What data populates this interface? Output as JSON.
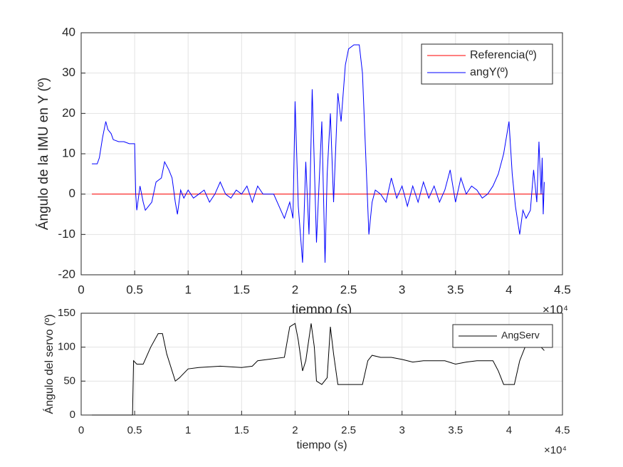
{
  "chart_data": [
    {
      "type": "line",
      "xlabel": "tiempo (s)",
      "ylabel": "Ángulo de la IMU en Y (º)",
      "x_exponent": "×10⁴",
      "xlim": [
        0,
        4.5
      ],
      "ylim": [
        -20,
        40
      ],
      "xticks": [
        0,
        0.5,
        1,
        1.5,
        2,
        2.5,
        3,
        3.5,
        4,
        4.5
      ],
      "yticks": [
        -20,
        -10,
        0,
        10,
        20,
        30,
        40
      ],
      "grid": true,
      "legend": "northeast",
      "series": [
        {
          "name": "Referencia(º)",
          "color": "#ff0000",
          "x": [
            0.1,
            4.33
          ],
          "values": [
            0,
            0
          ]
        },
        {
          "name": "angY(º)",
          "color": "#0000ff",
          "x": [
            0.1,
            0.15,
            0.17,
            0.2,
            0.23,
            0.25,
            0.28,
            0.3,
            0.35,
            0.4,
            0.45,
            0.5,
            0.51,
            0.52,
            0.55,
            0.58,
            0.6,
            0.63,
            0.66,
            0.7,
            0.75,
            0.78,
            0.82,
            0.85,
            0.88,
            0.9,
            0.93,
            0.96,
            1.0,
            1.05,
            1.1,
            1.15,
            1.2,
            1.25,
            1.3,
            1.35,
            1.4,
            1.45,
            1.5,
            1.55,
            1.6,
            1.65,
            1.7,
            1.8,
            1.85,
            1.9,
            1.95,
            1.98,
            2.0,
            2.03,
            2.07,
            2.1,
            2.13,
            2.16,
            2.2,
            2.25,
            2.28,
            2.3,
            2.33,
            2.36,
            2.4,
            2.43,
            2.47,
            2.5,
            2.55,
            2.6,
            2.63,
            2.66,
            2.69,
            2.72,
            2.75,
            2.8,
            2.85,
            2.9,
            2.95,
            3.0,
            3.05,
            3.1,
            3.15,
            3.2,
            3.25,
            3.3,
            3.35,
            3.4,
            3.45,
            3.5,
            3.55,
            3.6,
            3.65,
            3.7,
            3.75,
            3.8,
            3.85,
            3.9,
            3.95,
            4.0,
            4.03,
            4.06,
            4.1,
            4.13,
            4.16,
            4.2,
            4.23,
            4.26,
            4.28,
            4.3,
            4.31,
            4.32,
            4.33
          ],
          "values": [
            7.5,
            7.5,
            9,
            14,
            18,
            16,
            15,
            13.5,
            13,
            13,
            12.5,
            12.5,
            0,
            -4,
            2,
            -2,
            -4,
            -3,
            -2,
            3,
            4,
            8,
            6,
            4,
            -2,
            -5,
            1,
            -1,
            1,
            -1,
            0,
            1,
            -2,
            0,
            3,
            0,
            -1,
            1,
            0,
            2,
            -2,
            2,
            0,
            0,
            -3,
            -6,
            -2,
            -6,
            23,
            -3,
            -17,
            8,
            -10,
            26,
            -12,
            18,
            -17,
            5,
            20,
            -2,
            25,
            18,
            32,
            36,
            37,
            37,
            30,
            10,
            -10,
            -2,
            1,
            0,
            -2,
            4,
            -1,
            2,
            -3,
            2,
            -2,
            3,
            -1,
            2,
            -2,
            1,
            6,
            -2,
            4,
            0,
            2,
            1,
            -1,
            0,
            2,
            5,
            10,
            18,
            5,
            -3,
            -10,
            -4,
            -6,
            -4,
            6,
            -2,
            13,
            0,
            9,
            -5,
            3
          ]
        }
      ]
    },
    {
      "type": "line",
      "xlabel": "tiempo (s)",
      "ylabel": "Ángulo del servo (º)",
      "x_exponent": "×10⁴",
      "xlim": [
        0,
        4.5
      ],
      "ylim": [
        0,
        150
      ],
      "xticks": [
        0,
        0.5,
        1,
        1.5,
        2,
        2.5,
        3,
        3.5,
        4,
        4.5
      ],
      "yticks": [
        0,
        50,
        100,
        150
      ],
      "grid": true,
      "legend": "northeast",
      "series": [
        {
          "name": "AngServ",
          "color": "#000000",
          "x": [
            0.1,
            0.48,
            0.49,
            0.52,
            0.58,
            0.65,
            0.72,
            0.76,
            0.8,
            0.88,
            0.92,
            1.0,
            1.1,
            1.3,
            1.5,
            1.6,
            1.65,
            1.9,
            1.95,
            2.0,
            2.03,
            2.07,
            2.1,
            2.15,
            2.18,
            2.2,
            2.25,
            2.3,
            2.33,
            2.36,
            2.4,
            2.5,
            2.63,
            2.68,
            2.72,
            2.8,
            2.9,
            3.0,
            3.1,
            3.2,
            3.4,
            3.5,
            3.6,
            3.7,
            3.85,
            3.9,
            3.95,
            4.0,
            4.05,
            4.1,
            4.15,
            4.2,
            4.25,
            4.3,
            4.33
          ],
          "values": [
            0,
            0,
            80,
            75,
            75,
            100,
            120,
            120,
            90,
            50,
            55,
            68,
            70,
            72,
            70,
            72,
            80,
            85,
            130,
            135,
            110,
            65,
            80,
            135,
            100,
            50,
            45,
            55,
            130,
            90,
            45,
            45,
            45,
            80,
            88,
            85,
            85,
            82,
            78,
            80,
            80,
            75,
            78,
            80,
            80,
            65,
            45,
            45,
            45,
            80,
            100,
            120,
            108,
            100,
            95
          ]
        }
      ]
    }
  ]
}
